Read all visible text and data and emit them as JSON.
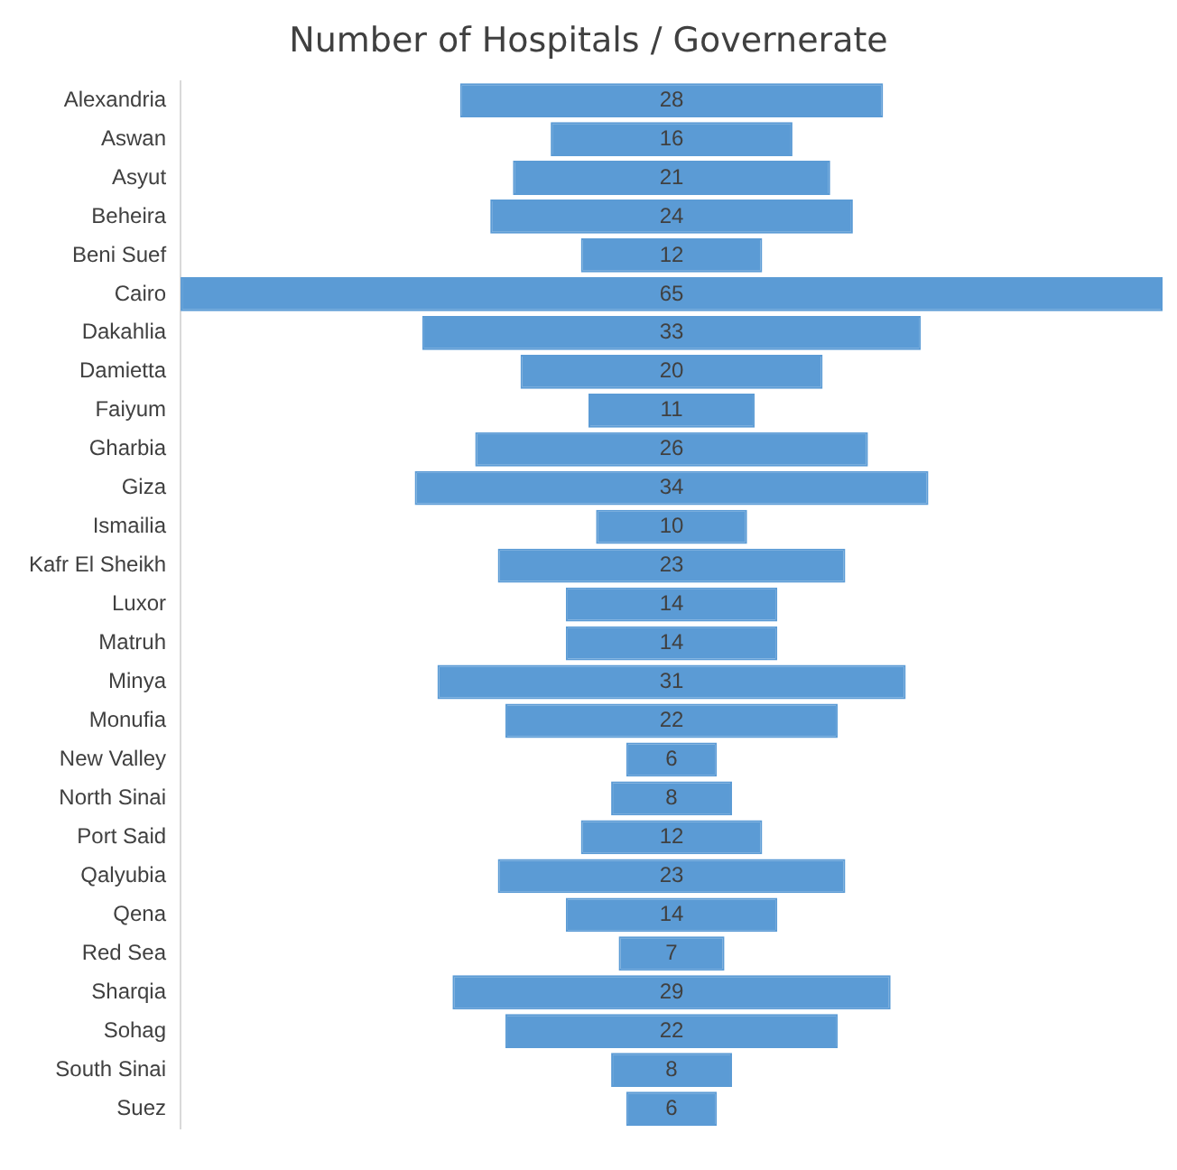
{
  "chart_data": {
    "type": "other",
    "title": "Number of Hospitals / Governerate",
    "categories": [
      "Alexandria",
      "Aswan",
      "Asyut",
      "Beheira",
      "Beni Suef",
      "Cairo",
      "Dakahlia",
      "Damietta",
      "Faiyum",
      "Gharbia",
      "Giza",
      "Ismailia",
      "Kafr El Sheikh",
      "Luxor",
      "Matruh",
      "Minya",
      "Monufia",
      "New Valley",
      "North Sinai",
      "Port Said",
      "Qalyubia",
      "Qena",
      "Red Sea",
      "Sharqia",
      "Sohag",
      "South Sinai",
      "Suez"
    ],
    "values": [
      28,
      16,
      21,
      24,
      12,
      65,
      33,
      20,
      11,
      26,
      34,
      10,
      23,
      14,
      14,
      31,
      22,
      6,
      8,
      12,
      23,
      14,
      7,
      29,
      22,
      8,
      6
    ],
    "color": "#5b9bd5",
    "data_labels": true
  }
}
